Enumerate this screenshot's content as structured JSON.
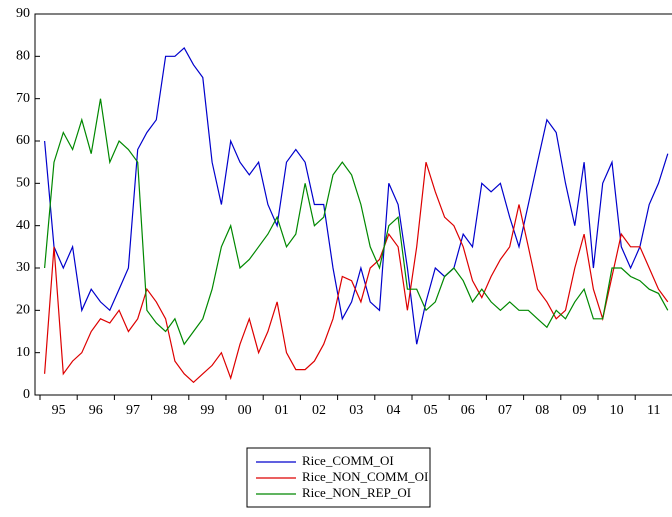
{
  "chart_data": {
    "type": "line",
    "categories": [
      null,
      "95",
      null,
      null,
      null,
      "96",
      null,
      null,
      null,
      "97",
      null,
      null,
      null,
      "98",
      null,
      null,
      null,
      "99",
      null,
      null,
      null,
      "00",
      null,
      null,
      null,
      "01",
      null,
      null,
      null,
      "02",
      null,
      null,
      null,
      "03",
      null,
      null,
      null,
      "04",
      null,
      null,
      null,
      "05",
      null,
      null,
      null,
      "06",
      null,
      null,
      null,
      "07",
      null,
      null,
      null,
      "08",
      null,
      null,
      null,
      "09",
      null,
      null,
      null,
      "10",
      null,
      null,
      null,
      "11",
      null,
      null
    ],
    "series": [
      {
        "name": "Rice_COMM_OI",
        "color": "#0000cc",
        "values": [
          60,
          35,
          30,
          35,
          20,
          25,
          22,
          20,
          25,
          30,
          58,
          62,
          65,
          80,
          80,
          82,
          78,
          75,
          55,
          45,
          60,
          55,
          52,
          55,
          45,
          40,
          55,
          58,
          55,
          45,
          45,
          30,
          18,
          22,
          30,
          22,
          20,
          50,
          45,
          30,
          12,
          22,
          30,
          28,
          30,
          38,
          35,
          50,
          48,
          50,
          42,
          35,
          45,
          55,
          65,
          62,
          50,
          40,
          55,
          30,
          50,
          55,
          35,
          30,
          35,
          45,
          50,
          57
        ]
      },
      {
        "name": "Rice_NON_COMM_OI",
        "color": "#dd0000",
        "values": [
          5,
          35,
          5,
          8,
          10,
          15,
          18,
          17,
          20,
          15,
          18,
          25,
          22,
          18,
          8,
          5,
          3,
          5,
          7,
          10,
          4,
          12,
          18,
          10,
          15,
          22,
          10,
          6,
          6,
          8,
          12,
          18,
          28,
          27,
          22,
          30,
          32,
          38,
          35,
          20,
          35,
          55,
          48,
          42,
          40,
          35,
          27,
          23,
          28,
          32,
          35,
          45,
          35,
          25,
          22,
          18,
          20,
          30,
          38,
          25,
          18,
          28,
          38,
          35,
          35,
          30,
          25,
          22
        ]
      },
      {
        "name": "Rice_NON_REP_OI",
        "color": "#008800",
        "values": [
          30,
          55,
          62,
          58,
          65,
          57,
          70,
          55,
          60,
          58,
          55,
          20,
          17,
          15,
          18,
          12,
          15,
          18,
          25,
          35,
          40,
          30,
          32,
          35,
          38,
          42,
          35,
          38,
          50,
          40,
          42,
          52,
          55,
          52,
          45,
          35,
          30,
          40,
          42,
          25,
          25,
          20,
          22,
          28,
          30,
          27,
          22,
          25,
          22,
          20,
          22,
          20,
          20,
          18,
          16,
          20,
          18,
          22,
          25,
          18,
          18,
          30,
          30,
          28,
          27,
          25,
          24,
          20
        ]
      }
    ],
    "ylim": [
      0,
      90
    ],
    "yticks": [
      0,
      10,
      20,
      30,
      40,
      50,
      60,
      70,
      80,
      90
    ]
  }
}
